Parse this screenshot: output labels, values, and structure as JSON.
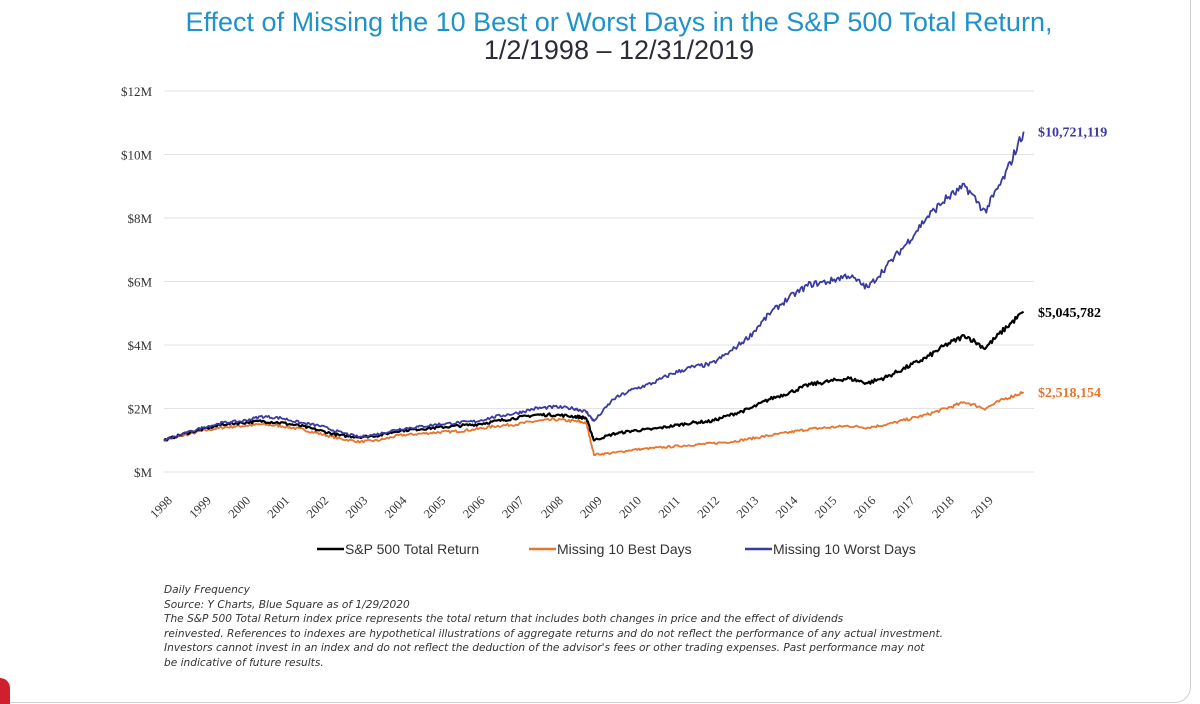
{
  "title_line1": "Effect of Missing the 10 Best or Worst Days in the S&P 500 Total Return,",
  "title_line2": "1/2/1998 – 12/31/2019",
  "chart_data": {
    "type": "line",
    "x": [
      1998,
      1998.5,
      1999,
      1999.5,
      2000,
      2000.5,
      2001,
      2001.5,
      2002,
      2002.5,
      2003,
      2003.5,
      2004,
      2004.5,
      2005,
      2005.5,
      2006,
      2006.5,
      2007,
      2007.5,
      2008,
      2008.5,
      2008.8,
      2009,
      2009.5,
      2010,
      2010.5,
      2011,
      2011.5,
      2012,
      2012.5,
      2013,
      2013.5,
      2014,
      2014.5,
      2015,
      2015.5,
      2016,
      2016.5,
      2017,
      2017.5,
      2018,
      2018.5,
      2019,
      2019.5,
      2019.99
    ],
    "series": [
      {
        "name": "S&P 500 Total Return",
        "color": "#000000",
        "values": [
          1.0,
          1.2,
          1.35,
          1.5,
          1.55,
          1.6,
          1.55,
          1.45,
          1.3,
          1.15,
          1.1,
          1.15,
          1.3,
          1.35,
          1.4,
          1.45,
          1.5,
          1.6,
          1.7,
          1.8,
          1.8,
          1.75,
          1.7,
          1.0,
          1.2,
          1.3,
          1.35,
          1.45,
          1.55,
          1.6,
          1.8,
          2.0,
          2.3,
          2.5,
          2.75,
          2.85,
          2.95,
          2.8,
          3.0,
          3.3,
          3.6,
          4.0,
          4.3,
          3.9,
          4.5,
          5.045782
        ]
      },
      {
        "name": "Missing 10 Best Days",
        "color": "#e8742d",
        "values": [
          1.0,
          1.15,
          1.3,
          1.4,
          1.45,
          1.5,
          1.45,
          1.35,
          1.2,
          1.05,
          0.95,
          1.0,
          1.15,
          1.2,
          1.25,
          1.28,
          1.35,
          1.45,
          1.5,
          1.6,
          1.65,
          1.6,
          1.55,
          0.55,
          0.6,
          0.7,
          0.75,
          0.8,
          0.85,
          0.9,
          0.95,
          1.05,
          1.15,
          1.25,
          1.35,
          1.4,
          1.45,
          1.4,
          1.5,
          1.65,
          1.8,
          2.0,
          2.2,
          2.0,
          2.3,
          2.518154
        ]
      },
      {
        "name": "Missing 10 Worst Days",
        "color": "#3a3aa3",
        "values": [
          1.0,
          1.2,
          1.4,
          1.55,
          1.6,
          1.75,
          1.7,
          1.55,
          1.45,
          1.25,
          1.1,
          1.2,
          1.35,
          1.42,
          1.5,
          1.55,
          1.6,
          1.75,
          1.85,
          2.0,
          2.05,
          2.0,
          1.9,
          1.6,
          2.3,
          2.6,
          2.8,
          3.1,
          3.3,
          3.4,
          3.8,
          4.3,
          5.0,
          5.5,
          5.9,
          6.0,
          6.2,
          5.8,
          6.5,
          7.2,
          8.0,
          8.6,
          9.0,
          8.2,
          9.3,
          10.721119
        ]
      }
    ],
    "end_labels": [
      "$10,721,119",
      "$5,045,782",
      "$2,518,154"
    ],
    "ylim": [
      0,
      12
    ],
    "yticks": [
      0,
      2,
      4,
      6,
      8,
      10,
      12
    ],
    "ytick_labels": [
      "$M",
      "$2M",
      "$4M",
      "$6M",
      "$8M",
      "$10M",
      "$12M"
    ],
    "xticks": [
      1998,
      1999,
      2000,
      2001,
      2002,
      2003,
      2004,
      2005,
      2006,
      2007,
      2008,
      2009,
      2010,
      2011,
      2012,
      2013,
      2014,
      2015,
      2016,
      2017,
      2018,
      2019
    ],
    "xtick_labels": [
      "1998",
      "1999",
      "2000",
      "2001",
      "2002",
      "2003",
      "2004",
      "2005",
      "2006",
      "2007",
      "2008",
      "2009",
      "2010",
      "2011",
      "2012",
      "2013",
      "2014",
      "2015",
      "2016",
      "2017",
      "2018",
      "2019"
    ],
    "xlim": [
      1998,
      2020
    ],
    "grid": "horizontal",
    "legend_position": "bottom"
  },
  "footnotes": [
    "Daily Frequency",
    "Source: Y Charts, Blue Square as of 1/29/2020",
    "The S&P 500 Total Return index price represents the total return that includes both changes in price and the effect of dividends",
    "reinvested. References to indexes are hypothetical illustrations of aggregate returns and do not reflect the performance of any actual investment.",
    "Investors cannot invest in an index and do not reflect the deduction of the advisor's fees or other trading expenses. Past performance may not",
    "be indicative of future results."
  ]
}
